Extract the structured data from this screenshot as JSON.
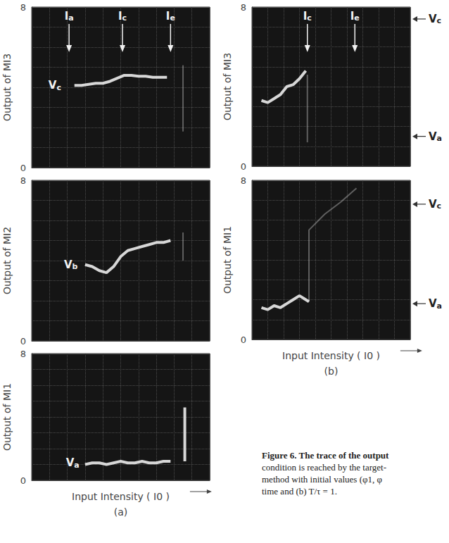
{
  "chart_data": [
    {
      "type": "line",
      "group": "(a)",
      "ylabel": "Output of MI3",
      "xlim": [
        0,
        10
      ],
      "xticks": [
        0,
        10
      ],
      "ylim": [
        0,
        8
      ],
      "yticks": [
        0,
        8
      ],
      "grid": true,
      "tick_labels": "y",
      "series": [
        {
          "x": [
            2.4,
            2.8,
            3.2,
            3.6,
            4.0,
            4.4,
            4.8,
            5.2,
            5.6,
            6.0,
            6.4,
            6.8,
            7.2,
            7.6
          ],
          "values": [
            4.1,
            4.1,
            4.15,
            4.2,
            4.2,
            4.3,
            4.45,
            4.6,
            4.6,
            4.55,
            4.55,
            4.5,
            4.5,
            4.5
          ],
          "line_style": "solid"
        },
        {
          "x": [
            8.5,
            8.5
          ],
          "values": [
            5.1,
            1.8
          ],
          "line_style": "faint"
        }
      ],
      "arrows": [
        {
          "label": "Ia",
          "x": 2.1
        },
        {
          "label": "Ic",
          "x": 5.1
        },
        {
          "label": "Ie",
          "x": 7.8
        }
      ],
      "levels": [
        {
          "label": "Vc",
          "x": 1.3,
          "y": 4.1
        }
      ]
    },
    {
      "type": "line",
      "group": "(a)",
      "ylabel": "Output of MI2",
      "xlim": [
        0,
        10
      ],
      "xticks": [
        0,
        10
      ],
      "ylim": [
        0,
        8
      ],
      "yticks": [
        0,
        8
      ],
      "grid": true,
      "tick_labels": "y",
      "series": [
        {
          "x": [
            3.0,
            3.4,
            3.8,
            4.2,
            4.6,
            5.0,
            5.4,
            5.8,
            6.2,
            6.6,
            7.0,
            7.4,
            7.8
          ],
          "values": [
            3.8,
            3.7,
            3.5,
            3.4,
            3.7,
            4.2,
            4.5,
            4.6,
            4.7,
            4.8,
            4.9,
            4.9,
            5.0
          ],
          "line_style": "solid"
        },
        {
          "x": [
            8.5,
            8.5
          ],
          "values": [
            5.4,
            4.0
          ],
          "line_style": "faint"
        }
      ],
      "levels": [
        {
          "label": "Vb",
          "x": 2.2,
          "y": 3.8
        }
      ]
    },
    {
      "type": "line",
      "group": "(a)",
      "ylabel": "Output of MI1",
      "xlabel": "Input Intensity ( I0 )",
      "xlim": [
        0,
        10
      ],
      "xticks": [
        0,
        10
      ],
      "ylim": [
        0,
        8
      ],
      "yticks": [
        0,
        8
      ],
      "grid": true,
      "tick_labels": "y",
      "series": [
        {
          "x": [
            3.0,
            3.4,
            3.8,
            4.2,
            4.6,
            5.0,
            5.4,
            5.8,
            6.2,
            6.6,
            7.0,
            7.4,
            7.8
          ],
          "values": [
            1.0,
            1.1,
            1.1,
            1.0,
            1.1,
            1.2,
            1.1,
            1.1,
            1.2,
            1.1,
            1.1,
            1.2,
            1.2
          ],
          "line_style": "solid"
        },
        {
          "x": [
            8.6,
            8.6
          ],
          "values": [
            1.2,
            4.6
          ],
          "line_style": "solid"
        }
      ],
      "levels": [
        {
          "label": "Va",
          "x": 2.3,
          "y": 1.1
        }
      ]
    },
    {
      "type": "line",
      "group": "(b)",
      "ylabel": "Output of MI3",
      "xlim": [
        0,
        10
      ],
      "xticks": [
        0,
        10
      ],
      "ylim": [
        0,
        8
      ],
      "yticks": [
        0,
        8
      ],
      "grid": true,
      "tick_labels": "y",
      "series": [
        {
          "x": [
            0.6,
            1.0,
            1.4,
            1.8,
            2.2,
            2.6,
            3.0,
            3.4
          ],
          "values": [
            3.3,
            3.2,
            3.4,
            3.6,
            4.0,
            4.1,
            4.4,
            4.8
          ],
          "line_style": "solid"
        },
        {
          "x": [
            3.5,
            3.5
          ],
          "values": [
            4.6,
            1.2
          ],
          "line_style": "faint"
        }
      ],
      "arrows": [
        {
          "label": "Ic",
          "x": 3.5
        },
        {
          "label": "Ie",
          "x": 6.5
        }
      ],
      "right_levels": [
        {
          "label": "Vc",
          "y": 7.4
        },
        {
          "label": "Va",
          "y": 1.5
        }
      ]
    },
    {
      "type": "line",
      "group": "(b)",
      "ylabel": "Output of MI1",
      "xlabel": "Input Intensity ( I0 )",
      "xlim": [
        0,
        10
      ],
      "xticks": [
        0,
        10
      ],
      "ylim": [
        0,
        8
      ],
      "yticks": [
        0,
        8
      ],
      "grid": true,
      "tick_labels": "y",
      "series": [
        {
          "x": [
            0.6,
            1.0,
            1.4,
            1.8,
            2.2,
            2.6,
            3.0,
            3.4,
            3.6
          ],
          "values": [
            1.6,
            1.5,
            1.7,
            1.6,
            1.8,
            2.0,
            2.2,
            2.0,
            1.9
          ],
          "line_style": "solid"
        },
        {
          "x": [
            3.6,
            3.6,
            4.6,
            5.6,
            6.6
          ],
          "values": [
            1.9,
            5.5,
            6.3,
            6.9,
            7.6
          ],
          "line_style": "faint"
        }
      ],
      "right_levels": [
        {
          "label": "Vc",
          "y": 6.8
        },
        {
          "label": "Va",
          "y": 1.8
        }
      ]
    }
  ],
  "caption": [
    "Figure 6. The trace of the output",
    "condition is reached by the target-",
    "method with initial values (φ1, φ",
    "time and (b) T/τ = 1."
  ]
}
